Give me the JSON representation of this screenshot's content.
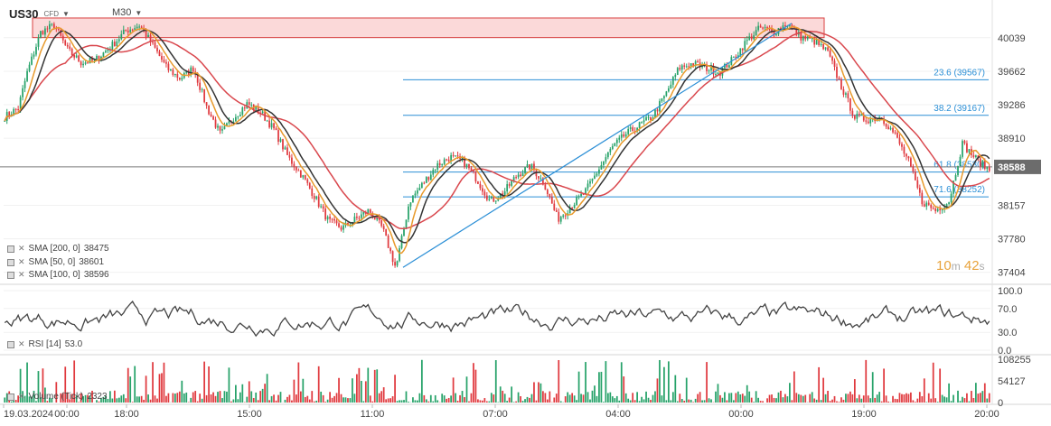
{
  "header": {
    "symbol": "US30",
    "instrument_type": "CFD",
    "timeframe": "M30"
  },
  "timer": {
    "minutes": "10",
    "m": "m",
    "seconds": "42",
    "s": "s"
  },
  "chart_data": [
    {
      "type": "candlestick",
      "title": "",
      "y_ticks": [
        40039,
        39662,
        39286,
        38910,
        38588,
        38157,
        37780,
        37404
      ],
      "ylim": [
        37300,
        40300
      ],
      "current_price": "38588",
      "x_tick_labels": [
        "19.03.2024",
        "00:00",
        "18:00",
        "15:00",
        "11:00",
        "07:00",
        "04:00",
        "00:00",
        "19:00",
        "20:00"
      ],
      "resistance_zone": [
        40040,
        40260
      ],
      "fibonacci": [
        {
          "level": "23.6",
          "price": 39567,
          "label": "23.6 (39567)"
        },
        {
          "level": "38.2",
          "price": 39167,
          "label": "38.2 (39167)"
        },
        {
          "level": "61.8",
          "price": 38530,
          "label": "61.8 (38530)"
        },
        {
          "level": "71.6",
          "price": 38252,
          "label": "71.6 (38252)"
        }
      ],
      "trendline": {
        "from": 37460,
        "to": 40200
      },
      "price_path": [
        [
          0,
          39150
        ],
        [
          3,
          39250
        ],
        [
          5,
          39650
        ],
        [
          8,
          40100
        ],
        [
          11,
          40180
        ],
        [
          14,
          39900
        ],
        [
          17,
          39760
        ],
        [
          20,
          39780
        ],
        [
          24,
          39960
        ],
        [
          27,
          40120
        ],
        [
          30,
          40180
        ],
        [
          33,
          39950
        ],
        [
          36,
          39700
        ],
        [
          39,
          39580
        ],
        [
          42,
          39700
        ],
        [
          45,
          39250
        ],
        [
          48,
          38950
        ],
        [
          51,
          39150
        ],
        [
          54,
          39300
        ],
        [
          57,
          39200
        ],
        [
          60,
          39000
        ],
        [
          63,
          38700
        ],
        [
          66,
          38500
        ],
        [
          69,
          38250
        ],
        [
          72,
          37980
        ],
        [
          75,
          37900
        ],
        [
          78,
          38000
        ],
        [
          81,
          38100
        ],
        [
          84,
          37900
        ],
        [
          87,
          37450
        ],
        [
          90,
          38200
        ],
        [
          93,
          38400
        ],
        [
          96,
          38600
        ],
        [
          99,
          38700
        ],
        [
          102,
          38650
        ],
        [
          105,
          38450
        ],
        [
          108,
          38200
        ],
        [
          111,
          38300
        ],
        [
          114,
          38500
        ],
        [
          117,
          38600
        ],
        [
          120,
          38400
        ],
        [
          123,
          38000
        ],
        [
          126,
          38150
        ],
        [
          129,
          38300
        ],
        [
          132,
          38550
        ],
        [
          135,
          38800
        ],
        [
          138,
          38950
        ],
        [
          141,
          39050
        ],
        [
          144,
          39150
        ],
        [
          147,
          39400
        ],
        [
          150,
          39700
        ],
        [
          153,
          39750
        ],
        [
          156,
          39700
        ],
        [
          159,
          39650
        ],
        [
          162,
          39800
        ],
        [
          165,
          40000
        ],
        [
          168,
          40150
        ],
        [
          171,
          40100
        ],
        [
          174,
          40200
        ],
        [
          177,
          40050
        ],
        [
          180,
          40000
        ],
        [
          183,
          39880
        ],
        [
          186,
          39500
        ],
        [
          189,
          39150
        ],
        [
          192,
          39120
        ],
        [
          195,
          39150
        ],
        [
          198,
          38950
        ],
        [
          201,
          38650
        ],
        [
          204,
          38200
        ],
        [
          207,
          38100
        ],
        [
          210,
          38200
        ],
        [
          213,
          38850
        ],
        [
          216,
          38680
        ],
        [
          219,
          38550
        ]
      ],
      "series": [
        {
          "name": "SMA (200, 0)",
          "value": 38475,
          "color": "#d9474d"
        },
        {
          "name": "SMA (50, 0)",
          "value": 38601,
          "color": "#333333"
        },
        {
          "name": "SMA (100, 0)",
          "value": 38596,
          "color": "#e89a2c"
        }
      ]
    },
    {
      "type": "line",
      "title": "RSI (14)",
      "value": "53.0",
      "y_ticks": [
        100.0,
        70.0,
        30.0,
        0.0
      ],
      "ylim": [
        0,
        100
      ],
      "color": "#444444"
    },
    {
      "type": "bar",
      "title": "Volume (Tick)",
      "value": "2323",
      "y_ticks": [
        108255,
        54127,
        0
      ],
      "ylim": [
        0,
        108255
      ],
      "up_color": "#26a269",
      "down_color": "#e0393e"
    }
  ],
  "legend": {
    "sma200": {
      "name": "SMA [200, 0]",
      "value": "38475"
    },
    "sma50": {
      "name": "SMA [50, 0]",
      "value": "38601"
    },
    "sma100": {
      "name": "SMA [100, 0]",
      "value": "38596"
    },
    "rsi": {
      "name": "RSI [14]",
      "value": "53.0"
    },
    "volume": {
      "name": "Volume (Tick)",
      "value": "2323"
    }
  }
}
